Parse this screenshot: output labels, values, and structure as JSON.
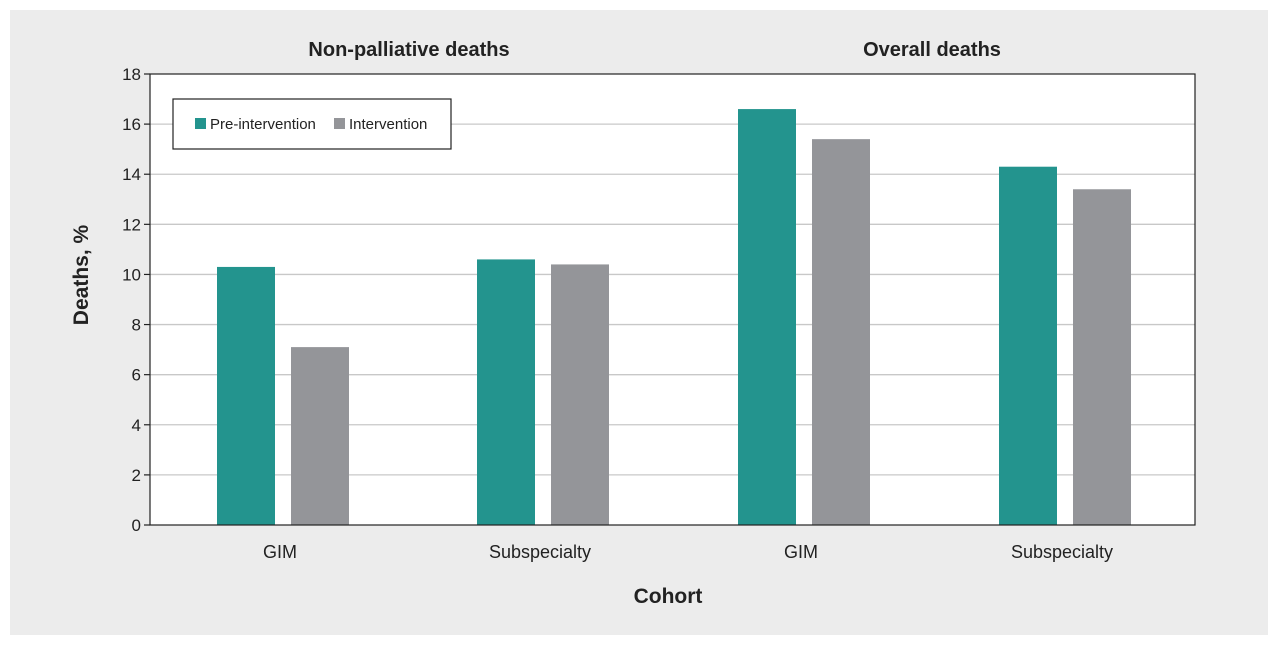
{
  "chart_data": {
    "type": "bar",
    "group_titles": [
      "Non-palliative deaths",
      "Overall deaths"
    ],
    "categories": [
      "GIM",
      "Subspecialty",
      "GIM",
      "Subspecialty"
    ],
    "series": [
      {
        "name": "Pre-intervention",
        "color": "#23948e",
        "values": [
          10.3,
          10.6,
          16.6,
          14.3
        ]
      },
      {
        "name": "Intervention",
        "color": "#949599",
        "values": [
          7.1,
          10.4,
          15.4,
          13.4
        ]
      }
    ],
    "xlabel": "Cohort",
    "ylabel": "Deaths, %",
    "ylim": [
      0,
      18
    ],
    "yticks": [
      "0",
      "2",
      "4",
      "6",
      "8",
      "10",
      "12",
      "14",
      "16",
      "18"
    ],
    "grid": true,
    "legend_position": "top-left"
  }
}
